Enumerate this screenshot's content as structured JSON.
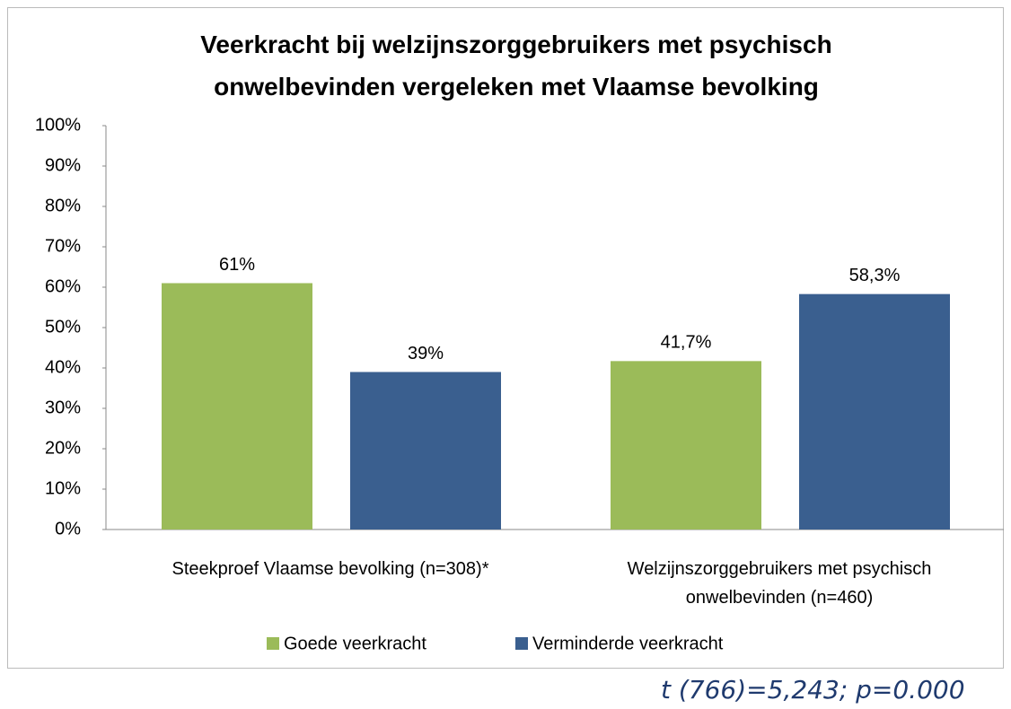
{
  "chart_data": {
    "type": "bar",
    "title": "Veerkracht bij welzijnszorggebruikers met psychisch onwelbevinden vergeleken met Vlaamse bevolking",
    "categories": [
      "Steekproef Vlaamse bevolking (n=308)*",
      "Welzijnszorggebruikers met psychisch onwelbevinden (n=460)"
    ],
    "series": [
      {
        "name": "Goede veerkracht",
        "color": "#9bbb59",
        "values": [
          61,
          41.7
        ],
        "value_labels": [
          "61%",
          "41,7%"
        ]
      },
      {
        "name": "Verminderde veerkracht",
        "color": "#3a5f8f",
        "values": [
          39,
          58.3
        ],
        "value_labels": [
          "39%",
          "58,3%"
        ]
      }
    ],
    "ylim": [
      0,
      100
    ],
    "yticks": [
      {
        "value": 0,
        "label": "0%"
      },
      {
        "value": 10,
        "label": "10%"
      },
      {
        "value": 20,
        "label": "20%"
      },
      {
        "value": 30,
        "label": "30%"
      },
      {
        "value": 40,
        "label": "40%"
      },
      {
        "value": 50,
        "label": "50%"
      },
      {
        "value": 60,
        "label": "60%"
      },
      {
        "value": 70,
        "label": "70%"
      },
      {
        "value": 80,
        "label": "80%"
      },
      {
        "value": 90,
        "label": "90%"
      },
      {
        "value": 100,
        "label": "100%"
      }
    ],
    "grid": false,
    "legend": "bottom",
    "annotation": "t (766)=5,243; p=0.000"
  }
}
